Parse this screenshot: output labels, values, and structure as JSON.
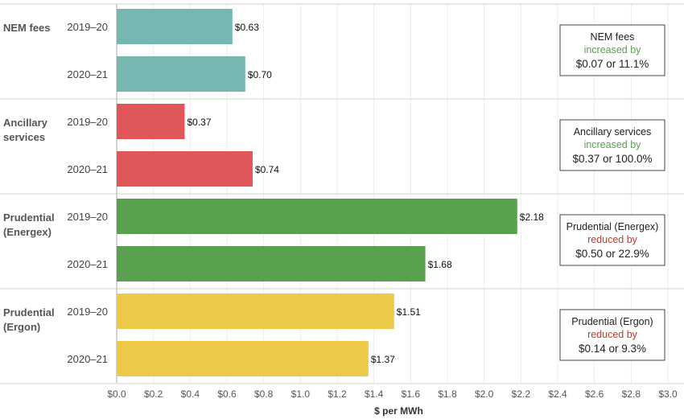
{
  "chart_data": {
    "type": "bar",
    "orientation": "horizontal",
    "xlabel": "$ per MWh",
    "xlim": [
      0,
      3.0
    ],
    "xticks": [
      "$0.0",
      "$0.2",
      "$0.4",
      "$0.6",
      "$0.8",
      "$1.0",
      "$1.2",
      "$1.4",
      "$1.6",
      "$1.8",
      "$2.0",
      "$2.2",
      "$2.4",
      "$2.6",
      "$2.8",
      "$3.0"
    ],
    "grid": true,
    "groups": [
      {
        "label": [
          "NEM fees"
        ],
        "color": "#76b7b2",
        "bars": [
          {
            "period": "2019–20",
            "value": 0.63,
            "label": "$0.63"
          },
          {
            "period": "2020–21",
            "value": 0.7,
            "label": "$0.70"
          }
        ],
        "annotation": {
          "title": "NEM fees",
          "change": "increased by",
          "change_color": "#59a14f",
          "detail": "$0.07 or 11.1%"
        }
      },
      {
        "label": [
          "Ancillary",
          "services"
        ],
        "color": "#e15759",
        "bars": [
          {
            "period": "2019–20",
            "value": 0.37,
            "label": "$0.37"
          },
          {
            "period": "2020–21",
            "value": 0.74,
            "label": "$0.74"
          }
        ],
        "annotation": {
          "title": "Ancillary services",
          "change": "increased by",
          "change_color": "#59a14f",
          "detail": "$0.37 or 100.0%"
        }
      },
      {
        "label": [
          "Prudential",
          "(Energex)"
        ],
        "color": "#59a14f",
        "bars": [
          {
            "period": "2019–20",
            "value": 2.18,
            "label": "$2.18"
          },
          {
            "period": "2020–21",
            "value": 1.68,
            "label": "$1.68"
          }
        ],
        "annotation": {
          "title": "Prudential (Energex)",
          "change": "reduced by",
          "change_color": "#c0392b",
          "detail": "$0.50 or 22.9%"
        }
      },
      {
        "label": [
          "Prudential",
          "(Ergon)"
        ],
        "color": "#edc948",
        "bars": [
          {
            "period": "2019–20",
            "value": 1.51,
            "label": "$1.51"
          },
          {
            "period": "2020–21",
            "value": 1.37,
            "label": "$1.37"
          }
        ],
        "annotation": {
          "title": "Prudential (Ergon)",
          "change": "reduced by",
          "change_color": "#c0392b",
          "detail": "$0.14 or 9.3%"
        }
      }
    ]
  }
}
